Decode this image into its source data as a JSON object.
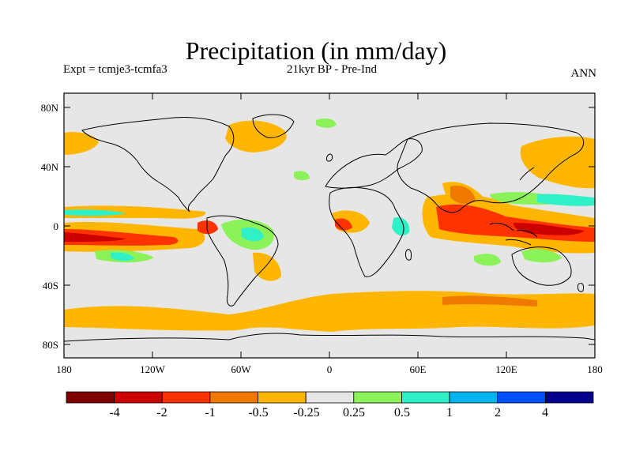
{
  "title": "Precipitation (in mm/day)",
  "subtitle_left": "Expt = tcmje3-tcmfa3",
  "subtitle_center": "21kyr BP - Pre-Ind",
  "subtitle_right": "ANN",
  "lat_ticks": [
    "80N",
    "40N",
    "0",
    "40S",
    "80S"
  ],
  "lon_ticks": [
    "180",
    "120W",
    "60W",
    "0",
    "60E",
    "120E",
    "180"
  ],
  "colorbar": {
    "colors": [
      "#7f0000",
      "#cc0000",
      "#ff3300",
      "#f07a00",
      "#ffb600",
      "#e6e6e6",
      "#8cf25a",
      "#30f0c8",
      "#00b4f0",
      "#0050ff",
      "#00008c"
    ],
    "labels": [
      "-4",
      "-2",
      "-1",
      "-0.5",
      "-0.25",
      "0.25",
      "0.5",
      "1",
      "2",
      "4"
    ]
  }
}
